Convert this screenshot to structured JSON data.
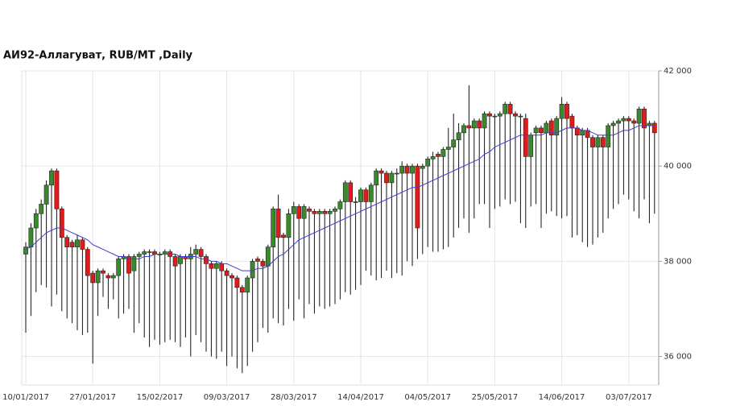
{
  "chart_data": {
    "type": "candlestick",
    "title": "АИ92-Аллагуват,  RUB/MT ,Daily",
    "categories": [
      "10/01/2017",
      null,
      null,
      null,
      null,
      null,
      null,
      null,
      null,
      null,
      null,
      null,
      null,
      "27/01/2017",
      null,
      null,
      null,
      null,
      null,
      null,
      null,
      null,
      null,
      null,
      null,
      null,
      "15/02/2017",
      null,
      null,
      null,
      null,
      null,
      null,
      null,
      null,
      null,
      null,
      null,
      null,
      "09/03/2017",
      null,
      null,
      null,
      null,
      null,
      null,
      null,
      null,
      null,
      null,
      null,
      null,
      "28/03/2017",
      null,
      null,
      null,
      null,
      null,
      null,
      null,
      null,
      null,
      null,
      null,
      null,
      "14/04/2017",
      null,
      null,
      null,
      null,
      null,
      null,
      null,
      null,
      null,
      null,
      null,
      null,
      "04/05/2017",
      null,
      null,
      null,
      null,
      null,
      null,
      null,
      null,
      null,
      null,
      null,
      null,
      "25/05/2017",
      null,
      null,
      null,
      null,
      null,
      null,
      null,
      null,
      null,
      null,
      null,
      null,
      "14/06/2017",
      null,
      null,
      null,
      null,
      null,
      null,
      null,
      null,
      null,
      null,
      null,
      null,
      "03/07/2017",
      null,
      null,
      null,
      null,
      null
    ],
    "open": [
      38150,
      38300,
      38700,
      39000,
      39200,
      39600,
      39900,
      39100,
      38500,
      38400,
      38300,
      38450,
      38250,
      37750,
      37550,
      37800,
      37700,
      37650,
      37700,
      38050,
      38100,
      37800,
      38100,
      38150,
      38200,
      38200,
      38150,
      38150,
      38200,
      38100,
      37950,
      38100,
      38050,
      38150,
      38250,
      38100,
      37950,
      37850,
      37950,
      37800,
      37700,
      37650,
      37450,
      37350,
      37650,
      38050,
      38000,
      37900,
      38300,
      39100,
      38550,
      38500,
      39000,
      39150,
      38900,
      39100,
      39050,
      39000,
      39050,
      39000,
      39050,
      39100,
      39250,
      39650,
      39250,
      39250,
      39500,
      39250,
      39600,
      39900,
      39850,
      39650,
      39850,
      39850,
      40000,
      39850,
      40000,
      39950,
      40000,
      40150,
      40250,
      40200,
      40350,
      40400,
      40550,
      40700,
      40850,
      40800,
      40950,
      40800,
      41100,
      41050,
      41050,
      41100,
      41300,
      41100,
      41050,
      41000,
      40200,
      40700,
      40800,
      40700,
      40950,
      40650,
      41000,
      41300,
      41050,
      40800,
      40650,
      40750,
      40600,
      40400,
      40600,
      40400,
      40850,
      40900,
      40950,
      41000,
      40950,
      40900,
      41200,
      40850,
      40900
    ],
    "high": [
      38400,
      38800,
      39100,
      39300,
      39700,
      39950,
      39950,
      39150,
      38550,
      38450,
      38550,
      38500,
      38300,
      37800,
      37850,
      37850,
      37750,
      37750,
      38100,
      38150,
      38150,
      38150,
      38200,
      38250,
      38250,
      38250,
      38200,
      38250,
      38250,
      38150,
      38150,
      38150,
      38300,
      38350,
      38300,
      38150,
      38000,
      38000,
      38000,
      37850,
      37750,
      37700,
      37500,
      37700,
      38050,
      38100,
      38050,
      38350,
      39150,
      39400,
      38600,
      39100,
      39250,
      39200,
      39200,
      39150,
      39100,
      39100,
      39100,
      39100,
      39150,
      39300,
      39700,
      39700,
      39350,
      39550,
      39550,
      39650,
      39950,
      39950,
      39900,
      39900,
      39950,
      40100,
      40050,
      40050,
      40050,
      40050,
      40200,
      40300,
      40300,
      40400,
      40800,
      41100,
      40900,
      40900,
      41700,
      41000,
      41000,
      41150,
      41150,
      41100,
      41150,
      41350,
      41350,
      41150,
      41100,
      41100,
      40700,
      40850,
      40850,
      40950,
      41000,
      41050,
      41450,
      41350,
      41100,
      40850,
      40800,
      40800,
      40650,
      40650,
      40650,
      40900,
      40950,
      41000,
      41050,
      41050,
      41000,
      41250,
      41250,
      40950,
      40950
    ],
    "low": [
      36500,
      36850,
      37350,
      37500,
      37450,
      37050,
      37300,
      36950,
      36800,
      36700,
      36550,
      36450,
      36500,
      35850,
      36850,
      37250,
      37000,
      37200,
      36800,
      36900,
      37000,
      36500,
      36700,
      36400,
      36200,
      36350,
      36250,
      36300,
      36350,
      36300,
      36200,
      36400,
      36000,
      36450,
      36300,
      36100,
      36000,
      35950,
      36100,
      35800,
      36000,
      35750,
      35650,
      35800,
      36100,
      36300,
      36600,
      36500,
      36800,
      36700,
      36650,
      37000,
      36750,
      37200,
      36800,
      37100,
      36900,
      37050,
      37000,
      37050,
      37100,
      37200,
      37350,
      37300,
      37400,
      37500,
      37800,
      37700,
      37600,
      37650,
      37800,
      37650,
      37750,
      37700,
      38000,
      37900,
      38050,
      38150,
      38300,
      38200,
      38200,
      38250,
      38300,
      38500,
      38700,
      38900,
      38600,
      38900,
      39200,
      39200,
      38700,
      39100,
      39150,
      39300,
      39200,
      39250,
      38800,
      38700,
      39150,
      39200,
      38700,
      39000,
      39050,
      38950,
      38900,
      38950,
      38500,
      38550,
      38400,
      38300,
      38350,
      38500,
      38600,
      38900,
      39100,
      39200,
      39400,
      39300,
      39050,
      38900,
      39300,
      38800,
      39000
    ],
    "close": [
      38300,
      38700,
      39000,
      39200,
      39600,
      39900,
      39100,
      38500,
      38300,
      38300,
      38450,
      38250,
      37700,
      37550,
      37800,
      37750,
      37650,
      37700,
      38050,
      38100,
      37750,
      38100,
      38150,
      38200,
      38200,
      38150,
      38150,
      38200,
      38100,
      37900,
      38100,
      38050,
      38150,
      38250,
      38100,
      37950,
      37850,
      37950,
      37800,
      37700,
      37650,
      37450,
      37350,
      37650,
      38000,
      38000,
      37900,
      38300,
      39100,
      38500,
      38500,
      39000,
      39150,
      38900,
      39150,
      39050,
      39000,
      39050,
      39000,
      39050,
      39100,
      39250,
      39650,
      39250,
      39250,
      39500,
      39250,
      39600,
      39900,
      39850,
      39650,
      39850,
      39850,
      40000,
      39850,
      40000,
      38700,
      40000,
      40150,
      40200,
      40200,
      40350,
      40400,
      40550,
      40700,
      40850,
      40800,
      40950,
      40800,
      41100,
      41050,
      41050,
      41100,
      41300,
      41100,
      41050,
      41050,
      40200,
      40650,
      40800,
      40700,
      40900,
      40650,
      41000,
      41300,
      41000,
      40800,
      40650,
      40750,
      40600,
      40400,
      40600,
      40400,
      40850,
      40900,
      40950,
      41000,
      40950,
      40900,
      41200,
      40800,
      40900,
      40700
    ],
    "up_color": "#3a8a2c",
    "down_color": "#e01b1b",
    "overlay": {
      "color": "#3b3bd6",
      "values": [
        38250,
        38300,
        38400,
        38500,
        38600,
        38650,
        38700,
        38700,
        38650,
        38600,
        38550,
        38500,
        38450,
        38350,
        38300,
        38250,
        38200,
        38150,
        38100,
        38100,
        38050,
        38050,
        38050,
        38100,
        38100,
        38150,
        38150,
        38150,
        38150,
        38150,
        38100,
        38100,
        38100,
        38100,
        38050,
        38050,
        38000,
        38000,
        37950,
        37950,
        37900,
        37850,
        37800,
        37800,
        37800,
        37850,
        37850,
        37900,
        38000,
        38100,
        38150,
        38250,
        38350,
        38450,
        38500,
        38550,
        38600,
        38650,
        38700,
        38750,
        38800,
        38850,
        38900,
        38950,
        39000,
        39050,
        39100,
        39150,
        39200,
        39250,
        39300,
        39350,
        39400,
        39450,
        39500,
        39550,
        39550,
        39600,
        39650,
        39700,
        39750,
        39800,
        39850,
        39900,
        39950,
        40000,
        40050,
        40100,
        40150,
        40250,
        40300,
        40400,
        40450,
        40500,
        40550,
        40600,
        40650,
        40650,
        40650,
        40650,
        40650,
        40700,
        40700,
        40700,
        40750,
        40800,
        40800,
        40800,
        40750,
        40750,
        40700,
        40650,
        40650,
        40650,
        40650,
        40700,
        40750,
        40750,
        40800,
        40850,
        40850,
        40850,
        40850
      ]
    },
    "ylim": [
      35400,
      42000
    ],
    "yticks": [
      {
        "value": 36000,
        "label": "36 000"
      },
      {
        "value": 38000,
        "label": "38 000"
      },
      {
        "value": 40000,
        "label": "40 000"
      },
      {
        "value": 42000,
        "label": "42 000"
      }
    ],
    "grid": true
  }
}
